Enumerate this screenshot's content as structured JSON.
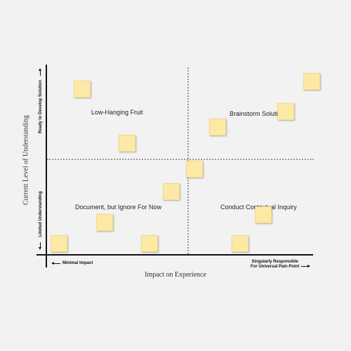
{
  "quadrants": {
    "top_left": "Low-Hanging Fruit",
    "top_right": "Brainstorm Solutions",
    "bottom_left": "Document, but Ignore For Now",
    "bottom_right": "Conduct Contextual Inquiry"
  },
  "x_axis": {
    "title": "Impact on Experience",
    "min_label": "Minimal Impact",
    "max_label_line1": "Singularly Responsible",
    "max_label_line2": "For Universal Pain Point"
  },
  "y_axis": {
    "title": "Current Level of Understanding",
    "max_label": "Ready to Develop Solution",
    "min_label": "Limited Understanding"
  },
  "colors": {
    "background": "#f2f2f2",
    "sticky_note": "#fde9a6",
    "axis": "#111111",
    "divider": "#9a9a9a"
  }
}
